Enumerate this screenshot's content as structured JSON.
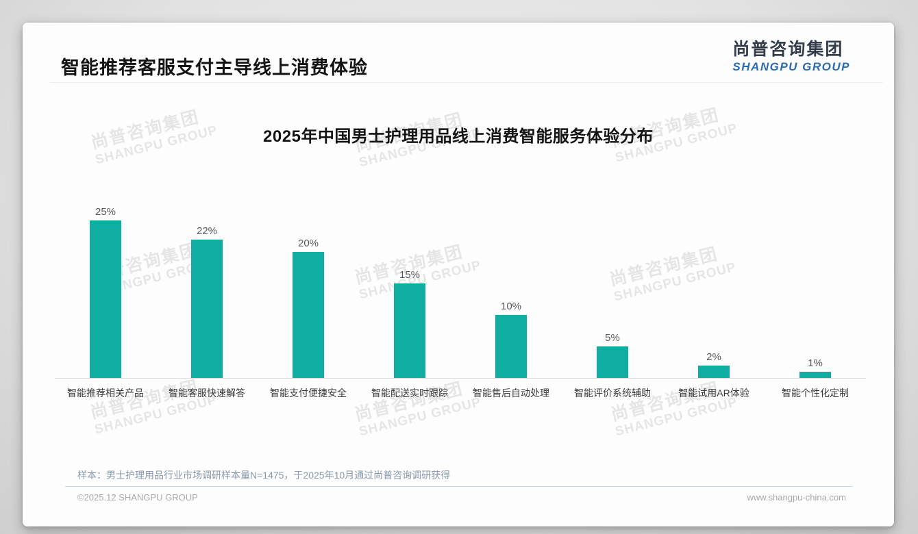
{
  "page": {
    "header": {
      "title": "智能推荐客服支付主导线上消费体验"
    },
    "logo": {
      "cn": "尚普咨询集团",
      "en": "SHANGPU GROUP"
    },
    "note": "样本：男士护理用品行业市场调研样本量N=1475，于2025年10月通过尚普咨询调研获得",
    "footer": {
      "copyright": "©2025.12 SHANGPU GROUP",
      "website": "www.shangpu-china.com"
    },
    "watermark": {
      "cn": "尚普咨询集团",
      "en": "SHANGPU GROUP"
    }
  },
  "chart_data": {
    "type": "bar",
    "title": "2025年中国男士护理用品线上消费智能服务体验分布",
    "categories": [
      "智能推荐相关产品",
      "智能客服快速解答",
      "智能支付便捷安全",
      "智能配送实时跟踪",
      "智能售后自动处理",
      "智能评价系统辅助",
      "智能试用AR体验",
      "智能个性化定制"
    ],
    "values": [
      25,
      22,
      20,
      15,
      10,
      5,
      2,
      1
    ],
    "value_labels": [
      "25%",
      "22%",
      "20%",
      "15%",
      "10%",
      "5%",
      "2%",
      "1%"
    ],
    "unit": "%",
    "xlabel": "",
    "ylabel": "",
    "ylim": [
      0,
      25
    ],
    "grid": false,
    "legend": false,
    "bar_color": "#10ada2",
    "value_label_color": "#595959",
    "axis_line_color": "#d9d9d9"
  },
  "colors": {
    "accent_teal": "#10ada2",
    "logo_blue": "#2d6bb0",
    "logo_dark": "#333d4b",
    "note_bluegray": "#8799ab",
    "footer_gray": "#a9a9a9"
  }
}
